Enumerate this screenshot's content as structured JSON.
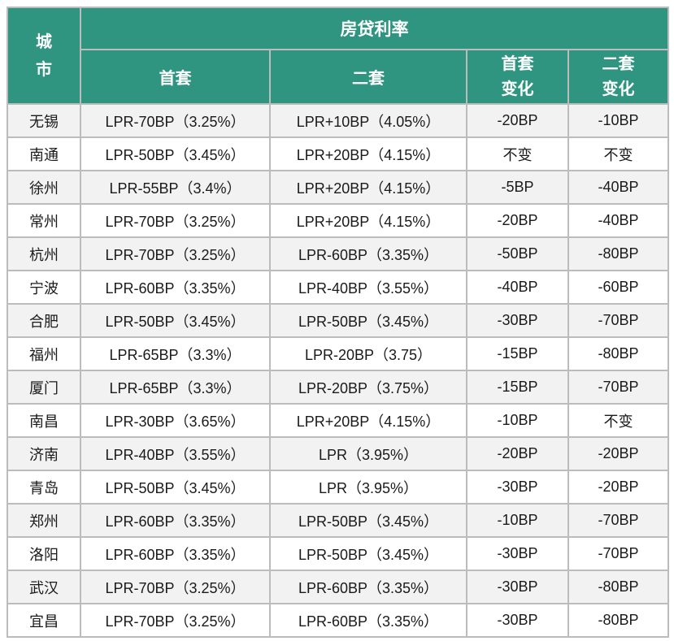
{
  "table": {
    "header": {
      "city": "城\n市",
      "group": "房贷利率",
      "first": "首套",
      "second": "二套",
      "first_change": "首套\n变化",
      "second_change": "二套\n变化"
    }
  },
  "chart_data": {
    "type": "table",
    "title": "房贷利率",
    "columns": [
      "城市",
      "首套",
      "二套",
      "首套变化",
      "二套变化"
    ],
    "rows": [
      [
        "无锡",
        "LPR-70BP（3.25%）",
        "LPR+10BP（4.05%）",
        "-20BP",
        "-10BP"
      ],
      [
        "南通",
        "LPR-50BP（3.45%）",
        "LPR+20BP（4.15%）",
        "不变",
        "不变"
      ],
      [
        "徐州",
        "LPR-55BP（3.4%）",
        "LPR+20BP（4.15%）",
        "-5BP",
        "-40BP"
      ],
      [
        "常州",
        "LPR-70BP（3.25%）",
        "LPR+20BP（4.15%）",
        "-20BP",
        "-40BP"
      ],
      [
        "杭州",
        "LPR-70BP（3.25%）",
        "LPR-60BP（3.35%）",
        "-50BP",
        "-80BP"
      ],
      [
        "宁波",
        "LPR-60BP（3.35%）",
        "LPR-40BP（3.55%）",
        "-40BP",
        "-60BP"
      ],
      [
        "合肥",
        "LPR-50BP（3.45%）",
        "LPR-50BP（3.45%）",
        "-30BP",
        "-70BP"
      ],
      [
        "福州",
        "LPR-65BP（3.3%）",
        "LPR-20BP（3.75）",
        "-15BP",
        "-80BP"
      ],
      [
        "厦门",
        "LPR-65BP（3.3%）",
        "LPR-20BP（3.75%）",
        "-15BP",
        "-70BP"
      ],
      [
        "南昌",
        "LPR-30BP（3.65%）",
        "LPR+20BP（4.15%）",
        "-10BP",
        "不变"
      ],
      [
        "济南",
        "LPR-40BP（3.55%）",
        "LPR（3.95%）",
        "-20BP",
        "-20BP"
      ],
      [
        "青岛",
        "LPR-50BP（3.45%）",
        "LPR（3.95%）",
        "-30BP",
        "-20BP"
      ],
      [
        "郑州",
        "LPR-60BP（3.35%）",
        "LPR-50BP（3.45%）",
        "-10BP",
        "-70BP"
      ],
      [
        "洛阳",
        "LPR-60BP（3.35%）",
        "LPR-50BP（3.45%）",
        "-30BP",
        "-70BP"
      ],
      [
        "武汉",
        "LPR-70BP（3.25%）",
        "LPR-60BP（3.35%）",
        "-30BP",
        "-80BP"
      ],
      [
        "宜昌",
        "LPR-70BP（3.25%）",
        "LPR-60BP（3.35%）",
        "-30BP",
        "-80BP"
      ]
    ]
  },
  "colors": {
    "header_bg": "#2f9480",
    "header_text": "#ffffff",
    "row_alt_bg": "#f2f2f2",
    "row_bg": "#ffffff",
    "border": "#bcbcbc",
    "text": "#1a1a1a"
  }
}
